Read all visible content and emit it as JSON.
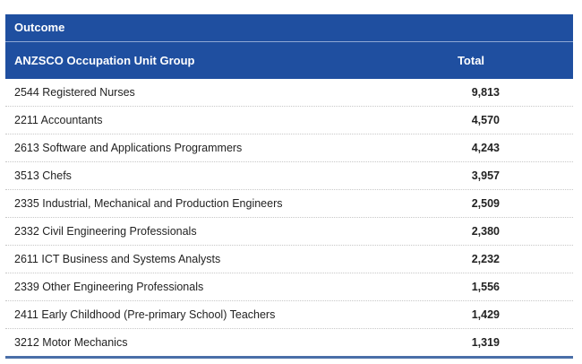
{
  "table": {
    "caption": "Outcome",
    "header": [
      "ANZSCO Occupation Unit Group",
      "Total"
    ],
    "rows": [
      [
        "2544 Registered Nurses",
        "9,813"
      ],
      [
        "2211 Accountants",
        "4,570"
      ],
      [
        "2613 Software and Applications Programmers",
        "4,243"
      ],
      [
        "3513 Chefs",
        "3,957"
      ],
      [
        "2335 Industrial, Mechanical and Production Engineers",
        "2,509"
      ],
      [
        "2332 Civil Engineering Professionals",
        "2,380"
      ],
      [
        "2611 ICT Business and Systems Analysts",
        "2,232"
      ],
      [
        "2339 Other Engineering Professionals",
        "1,556"
      ],
      [
        "2411 Early Childhood (Pre-primary School) Teachers",
        "1,429"
      ],
      [
        "3212 Motor Mechanics",
        "1,319"
      ]
    ]
  }
}
